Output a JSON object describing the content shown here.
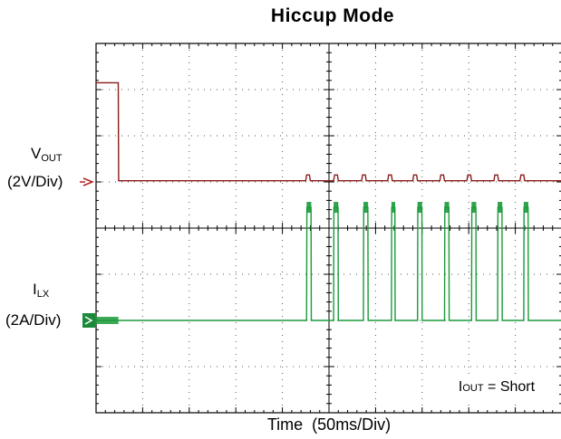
{
  "chart_data": {
    "type": "line",
    "title": "Hiccup Mode",
    "xlabel_prefix": "Time",
    "xlabel_scale": "(50ms/Div)",
    "x_unit": "ms",
    "x_divisions": 10,
    "x_per_div": 50,
    "y_divisions": 8,
    "grid": true,
    "series": [
      {
        "name_main": "V",
        "name_sub": "OUT",
        "scale": "(2V/Div)",
        "color": "#8b1a1a",
        "points": [
          [
            0,
            4.3
          ],
          [
            23.8,
            4.3
          ],
          [
            24.2,
            0.05
          ],
          [
            225,
            0.05
          ],
          [
            226,
            0.3
          ],
          [
            229,
            0.3
          ],
          [
            230,
            0.05
          ],
          [
            255,
            0.05
          ],
          [
            256,
            0.3
          ],
          [
            259,
            0.3
          ],
          [
            260,
            0.05
          ],
          [
            285,
            0.05
          ],
          [
            286,
            0.3
          ],
          [
            289,
            0.3
          ],
          [
            290,
            0.05
          ],
          [
            313,
            0.05
          ],
          [
            314,
            0.3
          ],
          [
            317,
            0.3
          ],
          [
            318,
            0.05
          ],
          [
            340,
            0.05
          ],
          [
            341,
            0.3
          ],
          [
            344,
            0.3
          ],
          [
            345,
            0.05
          ],
          [
            369,
            0.05
          ],
          [
            370,
            0.3
          ],
          [
            373,
            0.3
          ],
          [
            374,
            0.05
          ],
          [
            398,
            0.05
          ],
          [
            399,
            0.3
          ],
          [
            402,
            0.3
          ],
          [
            403,
            0.05
          ],
          [
            427,
            0.05
          ],
          [
            428,
            0.3
          ],
          [
            431,
            0.3
          ],
          [
            432,
            0.05
          ],
          [
            455,
            0.05
          ],
          [
            456,
            0.3
          ],
          [
            459,
            0.3
          ],
          [
            460,
            0.05
          ],
          [
            500,
            0.05
          ]
        ]
      },
      {
        "name_main": "I",
        "name_sub": "LX",
        "scale": "(2A/Div)",
        "color": "#1a9a3a",
        "bursts_ms": [
          [
            226,
            231
          ],
          [
            255,
            260
          ],
          [
            287,
            292
          ],
          [
            317,
            321
          ],
          [
            345,
            350
          ],
          [
            374,
            379
          ],
          [
            403,
            408
          ],
          [
            431,
            436
          ],
          [
            459,
            464
          ]
        ],
        "burst_level_A": 4.9,
        "baseline_A": 0
      }
    ],
    "annotation": {
      "main": "I",
      "sub": "OUT",
      "rest": " = Short"
    }
  }
}
